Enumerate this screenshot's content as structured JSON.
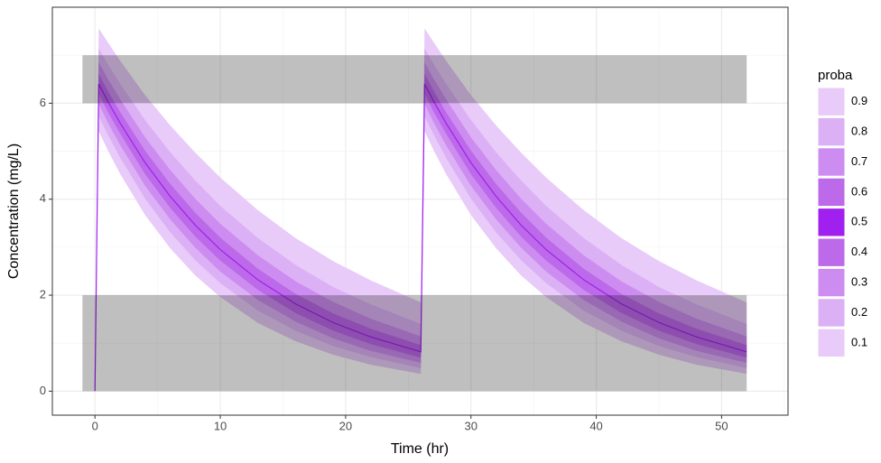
{
  "chart_data": {
    "type": "quantile-bands",
    "x_label": "Time (hr)",
    "y_label": "Concentration (mg/L)",
    "legend_title": "proba",
    "grid": true,
    "xlim": [
      -3.4,
      55.3
    ],
    "ylim": [
      -0.5,
      8.0
    ],
    "xticks": [
      0,
      10,
      20,
      30,
      40,
      50
    ],
    "yticks": [
      0,
      2,
      4,
      6
    ],
    "ranges": [
      {
        "xmin": -1,
        "xmax": 52,
        "ymin": 6,
        "ymax": 7
      },
      {
        "xmin": -1,
        "xmax": 52,
        "ymin": 0,
        "ymax": 2
      }
    ],
    "range_color": "#000000",
    "x": [
      0,
      0.3,
      1,
      2,
      4,
      6,
      8,
      10,
      13,
      16,
      19,
      22,
      26,
      26.3,
      27,
      28,
      30,
      32,
      34,
      36,
      39,
      42,
      45,
      48,
      52
    ],
    "series": [
      {
        "name": "0.9",
        "color": "#e8cbf9",
        "values": [
          0,
          7.56,
          7.28,
          6.89,
          6.17,
          5.54,
          4.97,
          4.45,
          3.77,
          3.19,
          2.71,
          2.31,
          1.85,
          7.56,
          7.28,
          6.89,
          6.17,
          5.54,
          4.97,
          4.45,
          3.77,
          3.19,
          2.71,
          2.31,
          1.85
        ]
      },
      {
        "name": "0.8",
        "color": "#dcb0f5",
        "values": [
          0,
          7.14,
          6.83,
          6.41,
          5.65,
          4.98,
          4.39,
          3.86,
          3.19,
          2.63,
          2.17,
          1.81,
          1.4,
          7.14,
          6.83,
          6.41,
          5.65,
          4.98,
          4.39,
          3.86,
          3.19,
          2.63,
          2.17,
          1.81,
          1.4
        ]
      },
      {
        "name": "0.7",
        "color": "#cd8df0",
        "values": [
          0,
          6.85,
          6.52,
          6.09,
          5.29,
          4.61,
          4.01,
          3.49,
          2.83,
          2.29,
          1.86,
          1.51,
          1.14,
          6.85,
          6.52,
          6.09,
          5.29,
          4.61,
          4.01,
          3.49,
          2.83,
          2.29,
          1.86,
          1.51,
          1.14
        ]
      },
      {
        "name": "0.6",
        "color": "#bc69ea",
        "values": [
          0,
          6.61,
          6.27,
          5.82,
          5.01,
          4.32,
          3.72,
          3.2,
          2.55,
          2.03,
          1.62,
          1.3,
          0.96,
          6.61,
          6.27,
          5.82,
          5.01,
          4.32,
          3.72,
          3.2,
          2.55,
          2.03,
          1.62,
          1.3,
          0.96
        ]
      },
      {
        "name": "0.5",
        "color": "#a020f0",
        "values": [
          0,
          6.4,
          6.05,
          5.59,
          4.76,
          4.06,
          3.46,
          2.95,
          2.32,
          1.82,
          1.43,
          1.13,
          0.82,
          6.4,
          6.05,
          5.59,
          4.76,
          4.06,
          3.46,
          2.95,
          2.32,
          1.82,
          1.43,
          1.13,
          0.82
        ]
      },
      {
        "name": "0.4",
        "color": "#bc69ea",
        "values": [
          0,
          6.2,
          5.83,
          5.37,
          4.52,
          3.82,
          3.22,
          2.72,
          2.11,
          1.63,
          1.26,
          0.98,
          0.7,
          6.2,
          5.83,
          5.37,
          4.52,
          3.82,
          3.22,
          2.72,
          2.11,
          1.63,
          1.26,
          0.98,
          0.7
        ]
      },
      {
        "name": "0.3",
        "color": "#cd8df0",
        "values": [
          0,
          5.98,
          5.61,
          5.13,
          4.28,
          3.58,
          2.99,
          2.49,
          1.9,
          1.45,
          1.1,
          0.84,
          0.59,
          5.98,
          5.61,
          5.13,
          4.28,
          3.58,
          2.99,
          2.49,
          1.9,
          1.45,
          1.1,
          0.84,
          0.59
        ]
      },
      {
        "name": "0.2",
        "color": "#dcb0f5",
        "values": [
          0,
          5.73,
          5.36,
          4.87,
          4.01,
          3.31,
          2.73,
          2.25,
          1.68,
          1.26,
          0.94,
          0.71,
          0.48,
          5.73,
          5.36,
          4.87,
          4.01,
          3.31,
          2.73,
          2.25,
          1.68,
          1.26,
          0.94,
          0.71,
          0.48
        ]
      },
      {
        "name": "0.1",
        "color": "#e8cbf9",
        "values": [
          0,
          5.42,
          5.03,
          4.53,
          3.67,
          2.98,
          2.41,
          1.96,
          1.42,
          1.04,
          0.76,
          0.55,
          0.36,
          5.42,
          5.03,
          4.53,
          3.67,
          2.98,
          2.41,
          1.96,
          1.42,
          1.04,
          0.76,
          0.55,
          0.36
        ]
      }
    ]
  }
}
